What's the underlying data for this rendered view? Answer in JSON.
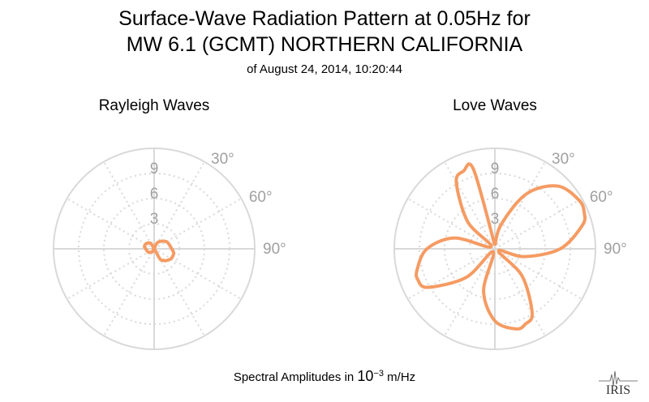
{
  "title_line1": "Surface-Wave Radiation Pattern at 0.05Hz for",
  "title_line2": "MW 6.1 (GCMT) NORTHERN CALIFORNIA",
  "title_line3": "of August 24, 2014, 10:20:44",
  "footer": {
    "prefix": "Spectral Amplitudes in ",
    "base": "10",
    "exponent": "−3",
    "unit": " m/Hz"
  },
  "logo_text": "IRIS",
  "colors": {
    "pattern": "#f59b63",
    "grid": "#d9d9d9",
    "label": "#a0a0a0"
  },
  "chart_data": [
    {
      "type": "polar",
      "title": "Rayleigh Waves",
      "radial_ticks": [
        3,
        6,
        9
      ],
      "angle_labels": [
        "30°",
        "60°",
        "90°"
      ],
      "rmax": 12,
      "series": [
        {
          "theta_deg": [
            0,
            30,
            60,
            90,
            100,
            105,
            120,
            135,
            140,
            150,
            180,
            210,
            240,
            270,
            280,
            285,
            300,
            315,
            320,
            330,
            360
          ],
          "r": [
            0.0,
            0.9,
            1.7,
            2.1,
            2.35,
            2.4,
            2.35,
            2.0,
            1.8,
            1.4,
            0.0,
            0.4,
            0.8,
            1.0,
            1.15,
            1.2,
            1.15,
            1.0,
            0.9,
            0.7,
            0.0
          ]
        }
      ]
    },
    {
      "type": "polar",
      "title": "Love Waves",
      "radial_ticks": [
        3,
        6,
        9
      ],
      "angle_labels": [
        "30°",
        "60°",
        "90°"
      ],
      "rmax": 12,
      "series": [
        {
          "theta_deg": [
            0,
            15,
            30,
            45,
            60,
            68,
            75,
            90,
            105,
            120,
            135,
            150,
            158,
            165,
            180,
            195,
            210,
            225,
            240,
            248,
            255,
            270,
            285,
            300,
            315,
            330,
            338,
            345,
            360
          ],
          "r": [
            0.4,
            3.1,
            7.6,
            10.6,
            11.6,
            11.5,
            10.8,
            7.8,
            3.6,
            0.5,
            4.6,
            8.9,
            9.7,
            9.9,
            8.6,
            5.2,
            0.4,
            4.8,
            9.2,
            9.9,
            9.6,
            8.1,
            5.0,
            0.5,
            4.6,
            9.2,
            10.0,
            9.8,
            0.4
          ]
        }
      ]
    }
  ]
}
